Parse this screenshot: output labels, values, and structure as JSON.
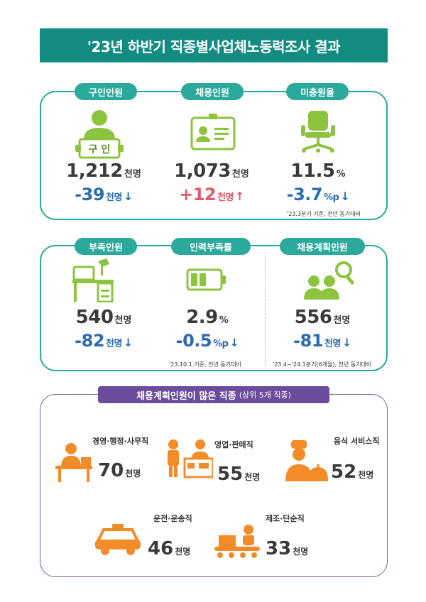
{
  "title": "'23년 하반기 직종별사업체노동력조사 결과",
  "panel1": {
    "items": [
      {
        "label": "구인인원",
        "icon_text": "구 인",
        "value": "1,212",
        "unit": "천명",
        "change": "-39",
        "change_unit": "천명",
        "direction": "down"
      },
      {
        "label": "채용인원",
        "value": "1,073",
        "unit": "천명",
        "change": "+12",
        "change_unit": "천명",
        "direction": "up"
      },
      {
        "label": "미충원율",
        "value": "11.5",
        "unit": "%",
        "change": "-3.7",
        "change_unit": "%p",
        "direction": "down"
      }
    ],
    "note": "'23.3분기 기준, 전년 동기대비"
  },
  "panel2": {
    "items": [
      {
        "label": "부족인원",
        "value": "540",
        "unit": "천명",
        "change": "-82",
        "change_unit": "천명",
        "direction": "down"
      },
      {
        "label": "인력부족률",
        "value": "2.9",
        "unit": "%",
        "change": "-0.5",
        "change_unit": "%p",
        "direction": "down"
      },
      {
        "label": "채용계획인원",
        "value": "556",
        "unit": "천명",
        "change": "-81",
        "change_unit": "천명",
        "direction": "down"
      }
    ],
    "note_left": "'23.10.1.기준, 전년 동기대비",
    "note_right": "'23.4~'24.1분기(6개월), 전년 동기대비"
  },
  "panel3": {
    "header": "채용계획인원이 많은 직종",
    "header_sub": "(상위 5개 직종)",
    "occupations": [
      {
        "label": "경영·행정·사무직",
        "value": "70",
        "unit": "천명"
      },
      {
        "label": "영업·판매직",
        "value": "55",
        "unit": "천명"
      },
      {
        "label": "음식 서비스직",
        "value": "52",
        "unit": "천명"
      },
      {
        "label": "운전·운송직",
        "value": "46",
        "unit": "천명"
      },
      {
        "label": "제조·단순직",
        "value": "33",
        "unit": "천명"
      }
    ]
  },
  "arrows": {
    "down": "↓",
    "up": "↑"
  },
  "colors": {
    "teal": "#2aa99c",
    "banner": "#128b80",
    "green_icon": "#8cc43f",
    "orange_icon": "#f28c28",
    "down": "#2b6cb0",
    "up": "#e0596d",
    "purple": "#6a4d9c"
  }
}
